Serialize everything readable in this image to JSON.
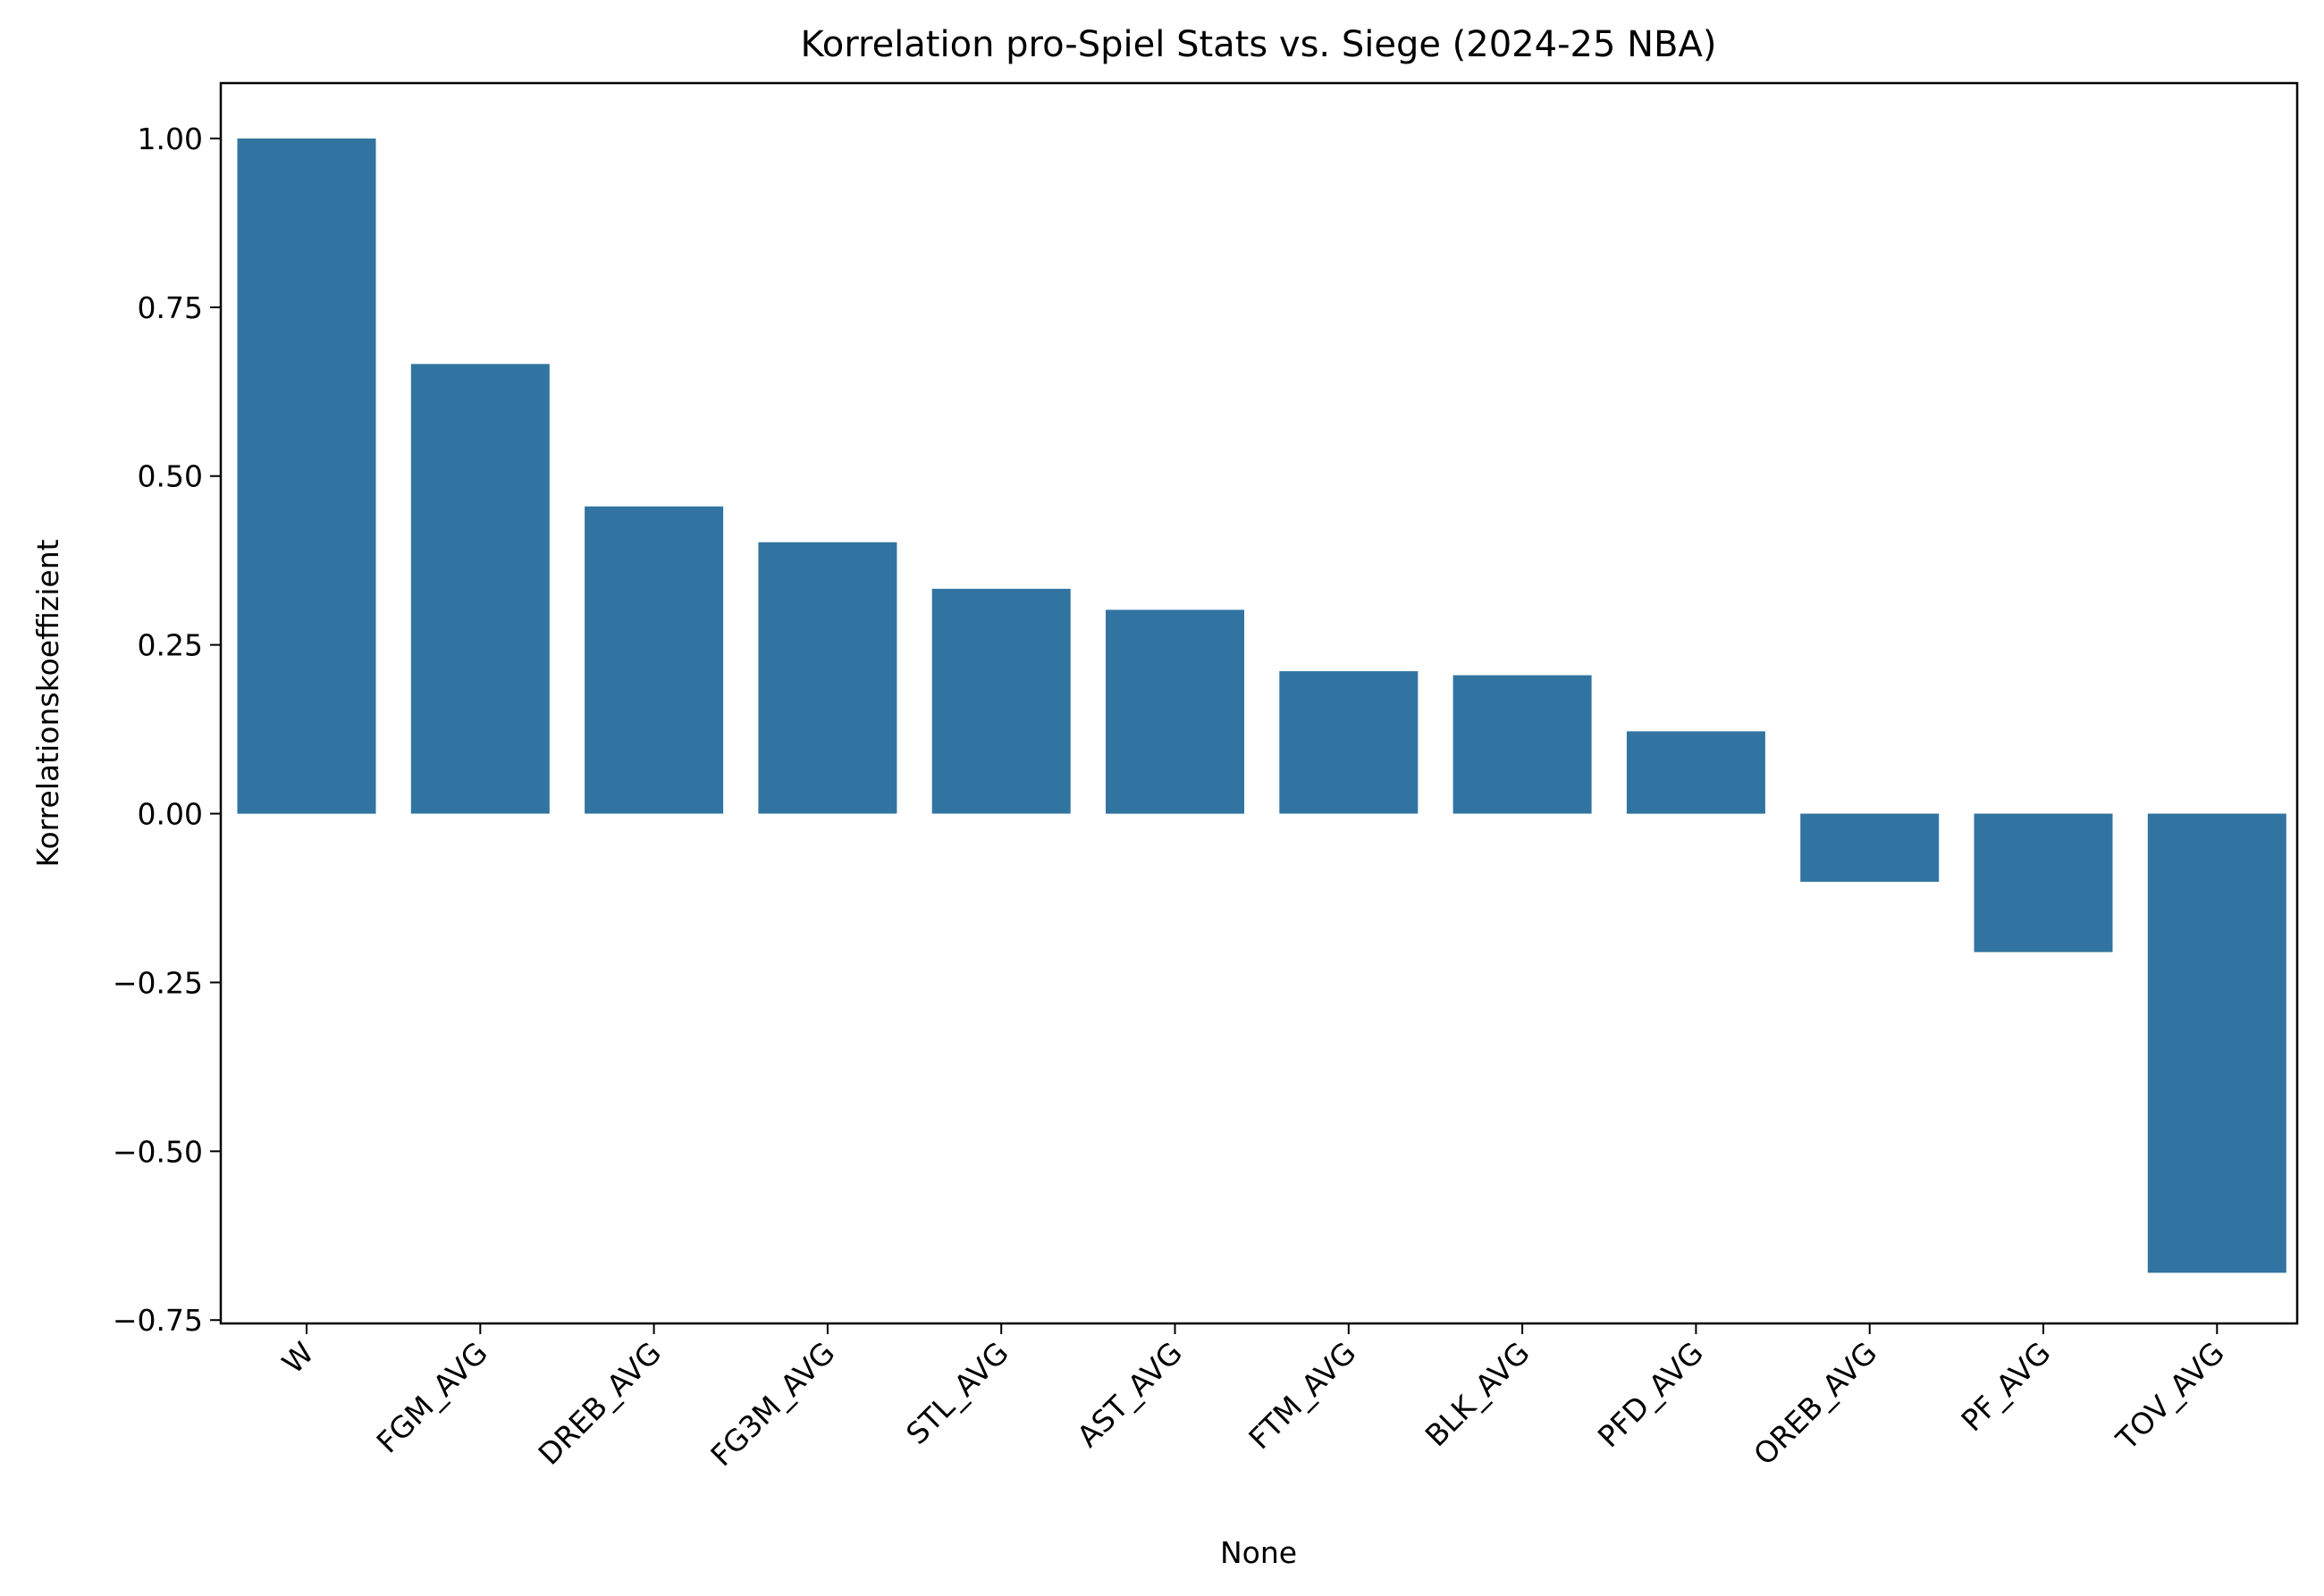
{
  "chart_data": {
    "type": "bar",
    "title": "Korrelation pro-Spiel Stats vs. Siege (2024-25 NBA)",
    "xlabel": "None",
    "ylabel": "Korrelationskoeffizient",
    "categories": [
      "W",
      "FGM_AVG",
      "DREB_AVG",
      "FG3M_AVG",
      "STL_AVG",
      "AST_AVG",
      "FTM_AVG",
      "BLK_AVG",
      "PFD_AVG",
      "OREB_AVG",
      "PF_AVG",
      "TOV_AVG"
    ],
    "values": [
      1.0,
      0.666,
      0.455,
      0.402,
      0.333,
      0.302,
      0.211,
      0.205,
      0.122,
      -0.101,
      -0.205,
      -0.68
    ],
    "ylim": [
      -0.755,
      1.082
    ],
    "yticks": [
      -0.75,
      -0.5,
      -0.25,
      0.0,
      0.25,
      0.5,
      0.75,
      1.0
    ],
    "ytick_labels": [
      "−0.75",
      "−0.50",
      "−0.25",
      "0.00",
      "0.25",
      "0.50",
      "0.75",
      "1.00"
    ],
    "bar_color": "#3274a1",
    "grid": false,
    "legend": "none"
  }
}
